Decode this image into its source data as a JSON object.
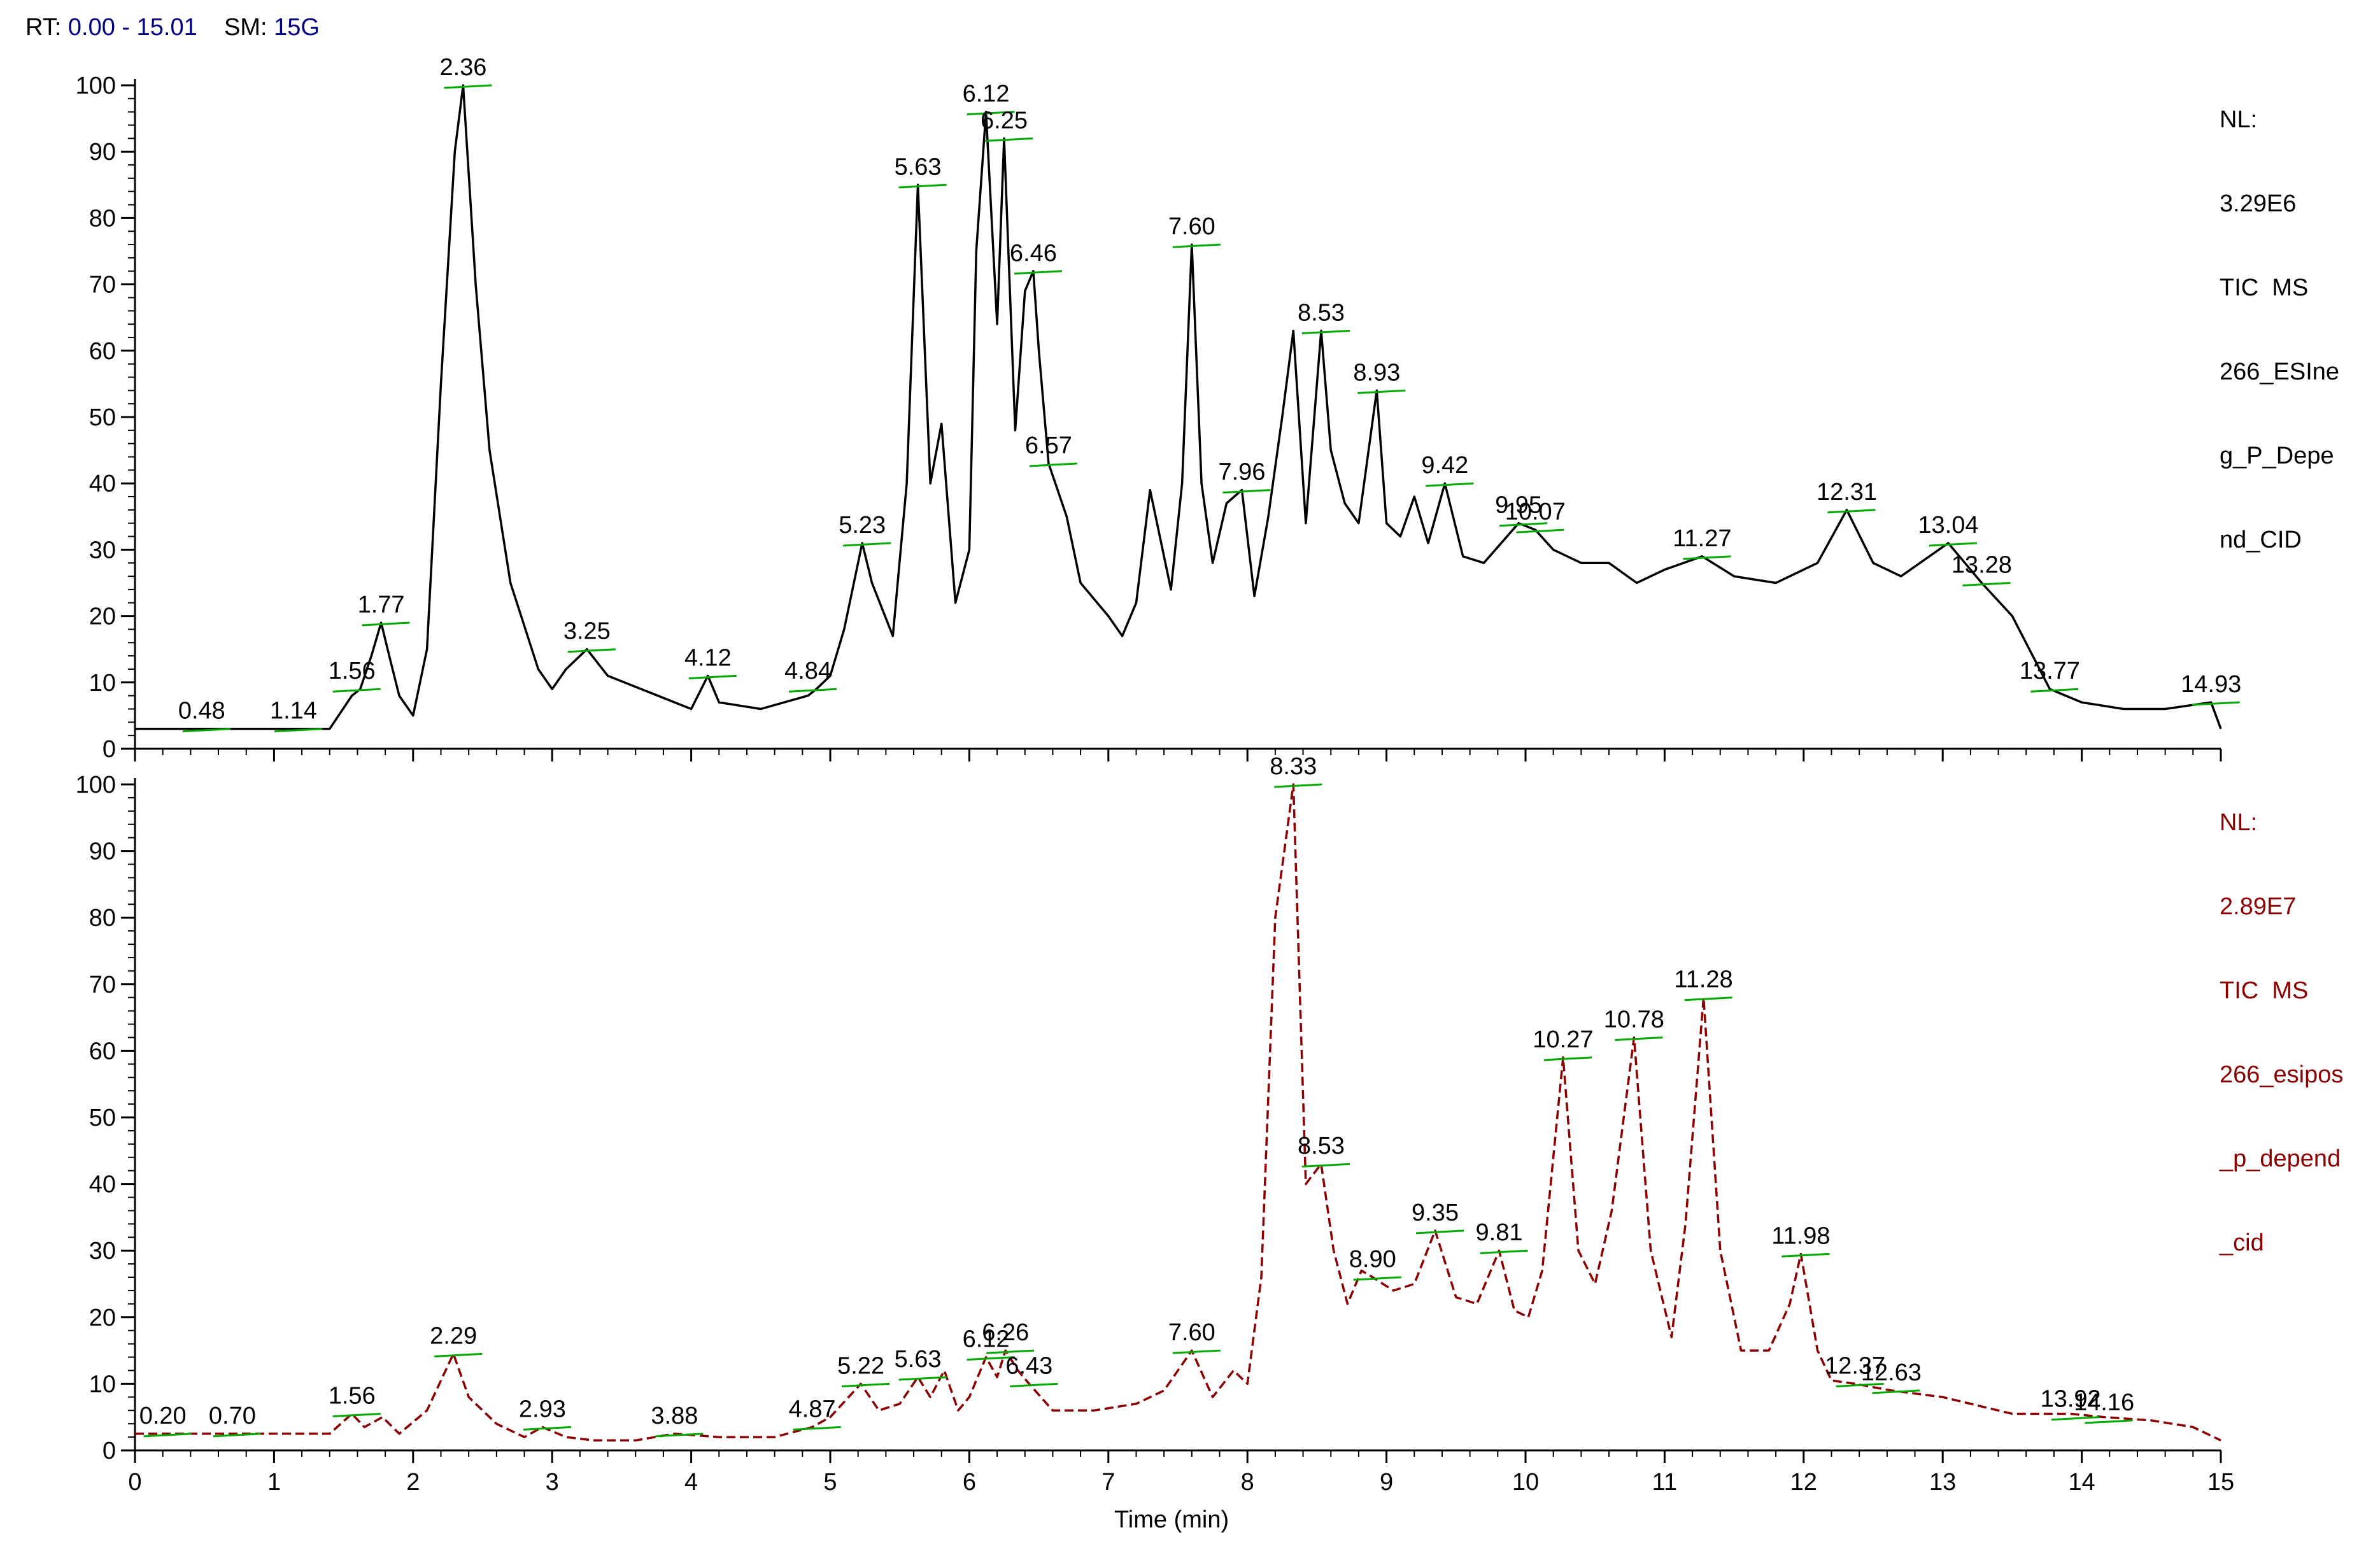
{
  "header": {
    "rt_label": "RT:",
    "rt_value": "0.00 - 15.01",
    "sm_label": "SM:",
    "sm_value": "15G"
  },
  "colors": {
    "top_trace": "#000000",
    "bottom_trace": "#8b0000",
    "baseline_marker": "#00aa00",
    "header_value": "#000080"
  },
  "chart_data": [
    {
      "type": "line",
      "panel": "top",
      "info_lines": [
        "NL:",
        "3.29E6",
        "TIC  MS",
        "266_ESIne",
        "g_P_Depe",
        "nd_CID"
      ],
      "xlabel": "",
      "ylim": [
        0,
        100
      ],
      "xlim": [
        0,
        15
      ],
      "yticks": [
        "0",
        "10",
        "20",
        "30",
        "40",
        "50",
        "60",
        "70",
        "80",
        "90",
        "100"
      ],
      "x": [
        0.0,
        0.48,
        1.14,
        1.4,
        1.56,
        1.62,
        1.7,
        1.77,
        1.84,
        1.9,
        2.0,
        2.1,
        2.2,
        2.3,
        2.36,
        2.45,
        2.55,
        2.7,
        2.9,
        3.0,
        3.1,
        3.25,
        3.4,
        4.0,
        4.12,
        4.2,
        4.5,
        4.84,
        4.9,
        5.0,
        5.1,
        5.23,
        5.3,
        5.45,
        5.55,
        5.63,
        5.72,
        5.8,
        5.9,
        6.0,
        6.05,
        6.12,
        6.2,
        6.25,
        6.33,
        6.4,
        6.46,
        6.5,
        6.57,
        6.7,
        6.8,
        7.0,
        7.1,
        7.2,
        7.3,
        7.45,
        7.53,
        7.6,
        7.67,
        7.75,
        7.85,
        7.96,
        8.05,
        8.15,
        8.25,
        8.33,
        8.42,
        8.53,
        8.6,
        8.7,
        8.8,
        8.93,
        9.0,
        9.1,
        9.2,
        9.3,
        9.42,
        9.55,
        9.7,
        9.95,
        10.07,
        10.2,
        10.4,
        10.6,
        10.8,
        11.0,
        11.27,
        11.5,
        11.8,
        12.1,
        12.31,
        12.5,
        12.7,
        13.04,
        13.28,
        13.5,
        13.77,
        14.0,
        14.3,
        14.6,
        14.93,
        15.0
      ],
      "y": [
        3,
        3,
        3,
        3,
        8,
        9,
        14,
        19,
        13,
        8,
        5,
        15,
        55,
        90,
        100,
        70,
        45,
        25,
        12,
        9,
        12,
        15,
        11,
        6,
        11,
        7,
        6,
        8,
        9,
        11,
        18,
        31,
        25,
        17,
        40,
        85,
        40,
        49,
        22,
        30,
        75,
        96,
        64,
        92,
        48,
        69,
        72,
        60,
        43,
        35,
        25,
        20,
        17,
        22,
        39,
        24,
        40,
        76,
        40,
        28,
        37,
        39,
        23,
        35,
        50,
        63,
        34,
        63,
        45,
        37,
        34,
        54,
        34,
        32,
        38,
        31,
        40,
        29,
        28,
        34,
        33,
        30,
        28,
        28,
        25,
        27,
        29,
        26,
        25,
        28,
        36,
        28,
        26,
        31,
        25,
        20,
        9,
        7,
        6,
        6,
        7,
        3
      ]
    },
    {
      "type": "line",
      "panel": "bottom",
      "info_lines": [
        "NL:",
        "2.89E7",
        "TIC  MS",
        "266_esipos",
        "_p_depend",
        "_cid"
      ],
      "xlabel": "Time (min)",
      "ylim": [
        0,
        100
      ],
      "xlim": [
        0,
        15
      ],
      "yticks": [
        "0",
        "10",
        "20",
        "30",
        "40",
        "50",
        "60",
        "70",
        "80",
        "90",
        "100"
      ],
      "xticks": [
        "0",
        "1",
        "2",
        "3",
        "4",
        "5",
        "6",
        "7",
        "8",
        "9",
        "10",
        "11",
        "12",
        "13",
        "14",
        "15"
      ],
      "x": [
        0.0,
        0.2,
        0.7,
        1.2,
        1.4,
        1.56,
        1.65,
        1.78,
        1.9,
        2.1,
        2.29,
        2.4,
        2.6,
        2.8,
        2.93,
        3.1,
        3.3,
        3.6,
        3.88,
        4.2,
        4.6,
        4.87,
        5.0,
        5.22,
        5.35,
        5.5,
        5.63,
        5.72,
        5.82,
        5.92,
        6.0,
        6.12,
        6.2,
        6.26,
        6.35,
        6.43,
        6.6,
        6.9,
        7.2,
        7.4,
        7.6,
        7.75,
        7.9,
        8.0,
        8.1,
        8.2,
        8.33,
        8.42,
        8.53,
        8.62,
        8.72,
        8.82,
        8.9,
        9.05,
        9.2,
        9.35,
        9.5,
        9.65,
        9.81,
        9.92,
        10.02,
        10.12,
        10.27,
        10.38,
        10.5,
        10.62,
        10.78,
        10.9,
        11.05,
        11.15,
        11.28,
        11.4,
        11.55,
        11.75,
        11.9,
        11.98,
        12.1,
        12.2,
        12.37,
        12.63,
        13.0,
        13.5,
        13.92,
        14.16,
        14.5,
        14.8,
        15.0
      ],
      "y": [
        2.5,
        2.5,
        2.5,
        2.5,
        2.5,
        5.5,
        3.5,
        5,
        2.5,
        6,
        14.5,
        8,
        4,
        2,
        3.5,
        2,
        1.5,
        1.5,
        2.5,
        2,
        2,
        3.5,
        5,
        10,
        6,
        7,
        11,
        8,
        12,
        6,
        8,
        14,
        11,
        15,
        12,
        10,
        6,
        6,
        7,
        9,
        15,
        8,
        12,
        10,
        26,
        80,
        100,
        40,
        43,
        30,
        22,
        27,
        26,
        24,
        25,
        33,
        23,
        22,
        30,
        21,
        20,
        27,
        59,
        30,
        25,
        36,
        62,
        30,
        17,
        34,
        68,
        30,
        15,
        15,
        22,
        29.5,
        15,
        10.5,
        10,
        9,
        8,
        5.5,
        5.5,
        5,
        4.5,
        3.5,
        1.5
      ]
    }
  ],
  "peak_labels_top": [
    {
      "x": 0.48,
      "y": 3,
      "text": "0.48"
    },
    {
      "x": 1.14,
      "y": 3,
      "text": "1.14"
    },
    {
      "x": 1.56,
      "y": 9,
      "text": "1.56"
    },
    {
      "x": 1.77,
      "y": 19,
      "text": "1.77"
    },
    {
      "x": 2.36,
      "y": 100,
      "text": "2.36"
    },
    {
      "x": 3.25,
      "y": 15,
      "text": "3.25"
    },
    {
      "x": 4.12,
      "y": 11,
      "text": "4.12"
    },
    {
      "x": 4.84,
      "y": 9,
      "text": "4.84"
    },
    {
      "x": 5.23,
      "y": 31,
      "text": "5.23"
    },
    {
      "x": 5.63,
      "y": 85,
      "text": "5.63"
    },
    {
      "x": 6.12,
      "y": 96,
      "text": "6.12"
    },
    {
      "x": 6.25,
      "y": 92,
      "text": "6.25"
    },
    {
      "x": 6.46,
      "y": 72,
      "text": "6.46"
    },
    {
      "x": 6.57,
      "y": 43,
      "text": "6.57"
    },
    {
      "x": 7.6,
      "y": 76,
      "text": "7.60"
    },
    {
      "x": 7.96,
      "y": 39,
      "text": "7.96"
    },
    {
      "x": 8.53,
      "y": 63,
      "text": "8.53"
    },
    {
      "x": 8.93,
      "y": 54,
      "text": "8.93"
    },
    {
      "x": 9.42,
      "y": 40,
      "text": "9.42"
    },
    {
      "x": 9.95,
      "y": 34,
      "text": "9.95"
    },
    {
      "x": 10.07,
      "y": 33,
      "text": "10.07"
    },
    {
      "x": 11.27,
      "y": 29,
      "text": "11.27"
    },
    {
      "x": 12.31,
      "y": 36,
      "text": "12.31"
    },
    {
      "x": 13.04,
      "y": 31,
      "text": "13.04"
    },
    {
      "x": 13.28,
      "y": 25,
      "text": "13.28"
    },
    {
      "x": 13.77,
      "y": 9,
      "text": "13.77"
    },
    {
      "x": 14.93,
      "y": 7,
      "text": "14.93"
    }
  ],
  "peak_labels_bottom": [
    {
      "x": 0.2,
      "y": 2.5,
      "text": "0.20"
    },
    {
      "x": 0.7,
      "y": 2.5,
      "text": "0.70"
    },
    {
      "x": 1.56,
      "y": 5.5,
      "text": "1.56"
    },
    {
      "x": 2.29,
      "y": 14.5,
      "text": "2.29"
    },
    {
      "x": 2.93,
      "y": 3.5,
      "text": "2.93"
    },
    {
      "x": 3.88,
      "y": 2.5,
      "text": "3.88"
    },
    {
      "x": 4.87,
      "y": 3.5,
      "text": "4.87"
    },
    {
      "x": 5.22,
      "y": 10,
      "text": "5.22"
    },
    {
      "x": 5.63,
      "y": 11,
      "text": "5.63"
    },
    {
      "x": 6.12,
      "y": 14,
      "text": "6.12"
    },
    {
      "x": 6.26,
      "y": 15,
      "text": "6.26"
    },
    {
      "x": 6.43,
      "y": 10,
      "text": "6.43"
    },
    {
      "x": 7.6,
      "y": 15,
      "text": "7.60"
    },
    {
      "x": 8.33,
      "y": 100,
      "text": "8.33"
    },
    {
      "x": 8.53,
      "y": 43,
      "text": "8.53"
    },
    {
      "x": 8.9,
      "y": 26,
      "text": "8.90"
    },
    {
      "x": 9.35,
      "y": 33,
      "text": "9.35"
    },
    {
      "x": 9.81,
      "y": 30,
      "text": "9.81"
    },
    {
      "x": 10.27,
      "y": 59,
      "text": "10.27"
    },
    {
      "x": 10.78,
      "y": 62,
      "text": "10.78"
    },
    {
      "x": 11.28,
      "y": 68,
      "text": "11.28"
    },
    {
      "x": 11.98,
      "y": 29.5,
      "text": "11.98"
    },
    {
      "x": 12.37,
      "y": 10,
      "text": "12.37"
    },
    {
      "x": 12.63,
      "y": 9,
      "text": "12.63"
    },
    {
      "x": 13.92,
      "y": 5,
      "text": "13.92"
    },
    {
      "x": 14.16,
      "y": 4.5,
      "text": "14.16"
    }
  ]
}
